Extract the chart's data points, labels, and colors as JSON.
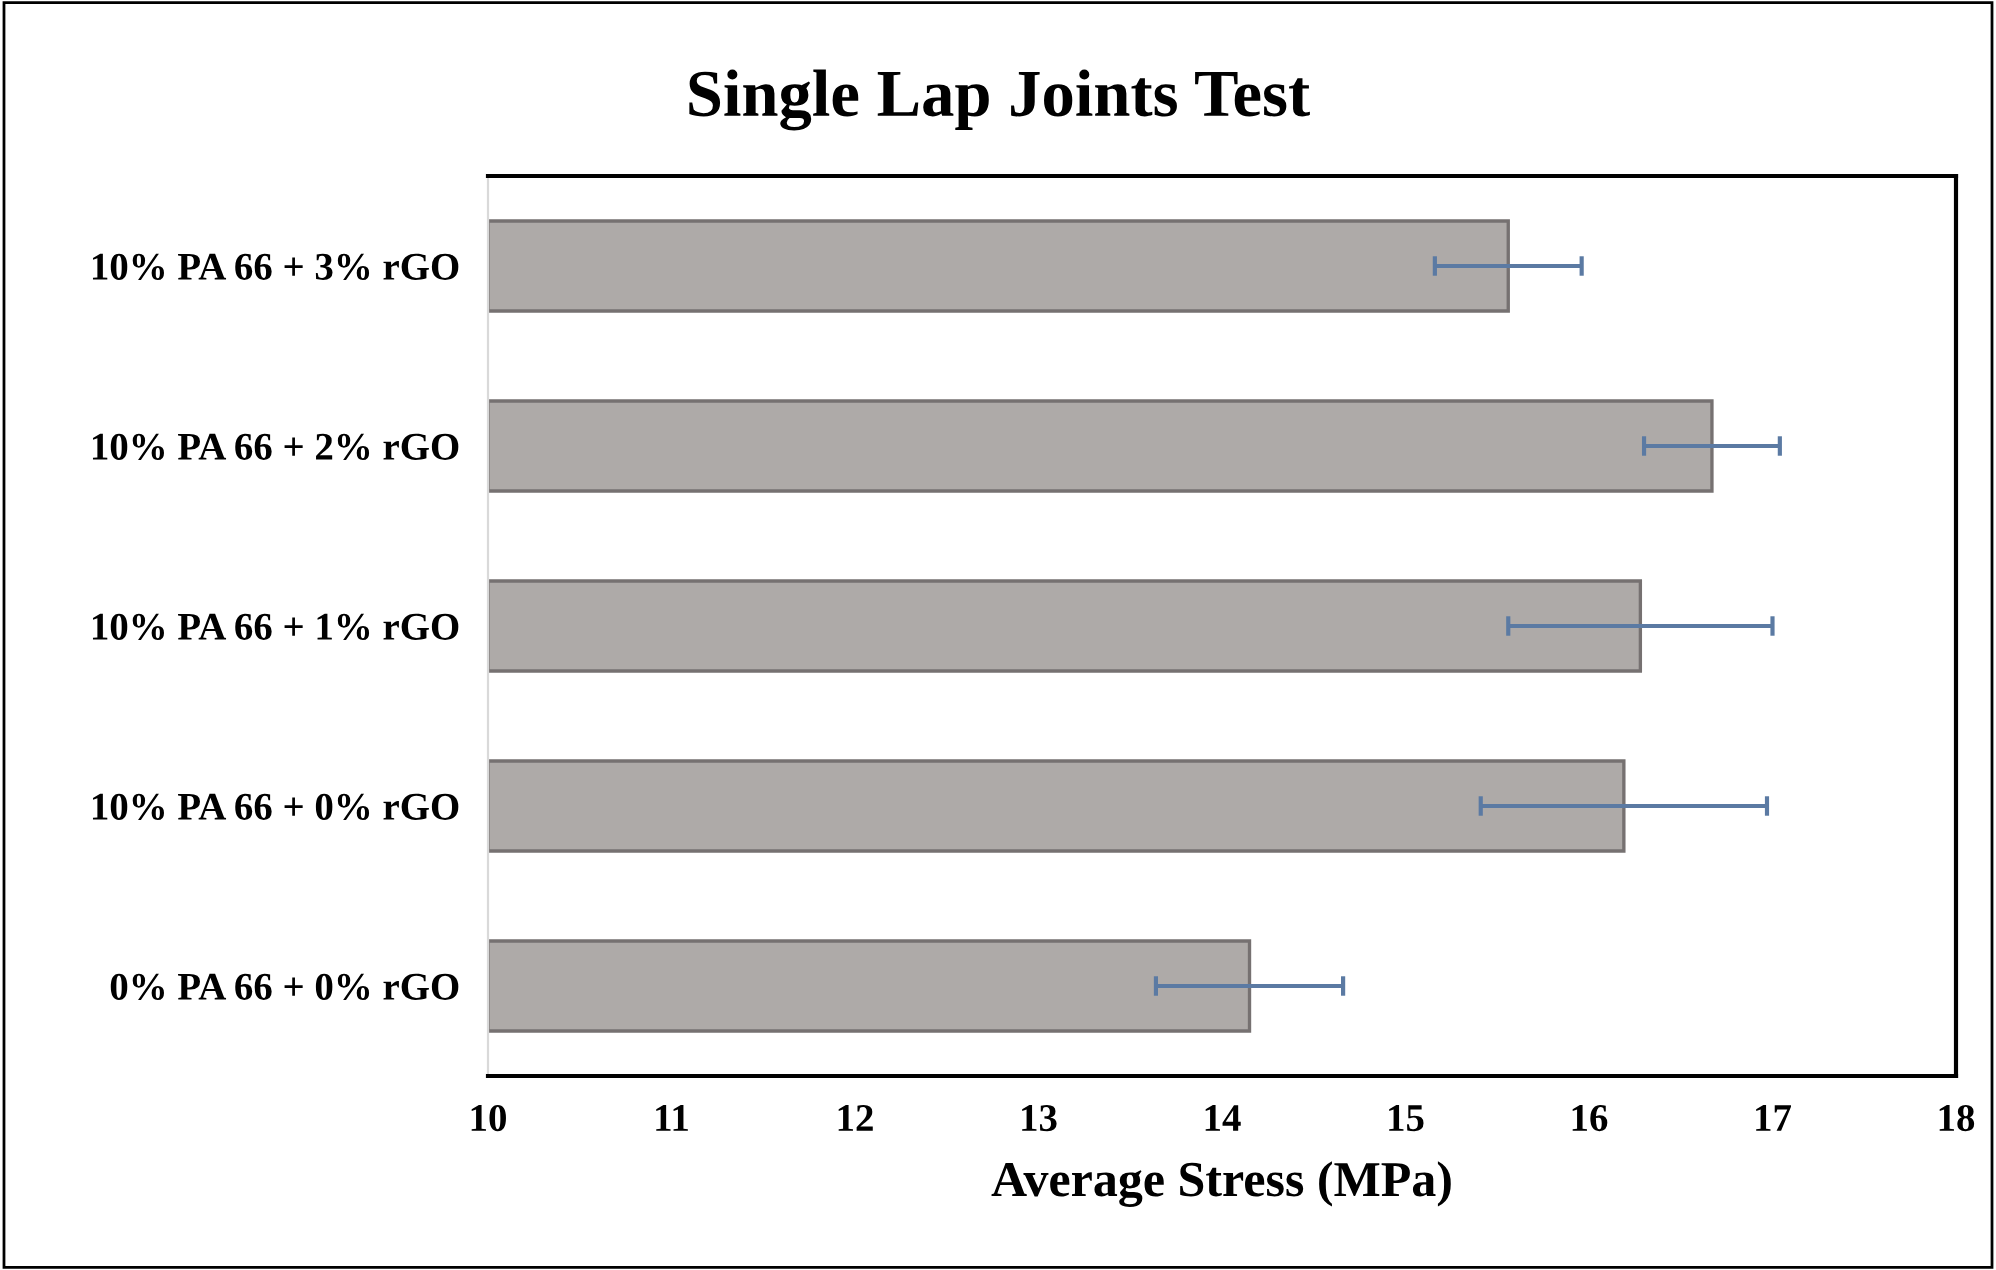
{
  "chart_data": {
    "type": "bar",
    "orientation": "horizontal",
    "title": "Single Lap Joints Test",
    "xlabel": "Average Stress (MPa)",
    "categories": [
      "10% PA 66 + 3% rGO",
      "10% PA 66 + 2% rGO",
      "10% PA 66 + 1% rGO",
      "10% PA 66 + 0% rGO",
      "0% PA 66 + 0% rGO"
    ],
    "values": [
      15.56,
      16.67,
      16.28,
      16.19,
      14.15
    ],
    "errors": [
      0.4,
      0.37,
      0.72,
      0.78,
      0.51
    ],
    "color": "#aeaaa8",
    "xlim": [
      10,
      18
    ],
    "xticks": [
      10,
      11,
      12,
      13,
      14,
      15,
      16,
      17,
      18
    ],
    "grid": false,
    "legend": false
  }
}
